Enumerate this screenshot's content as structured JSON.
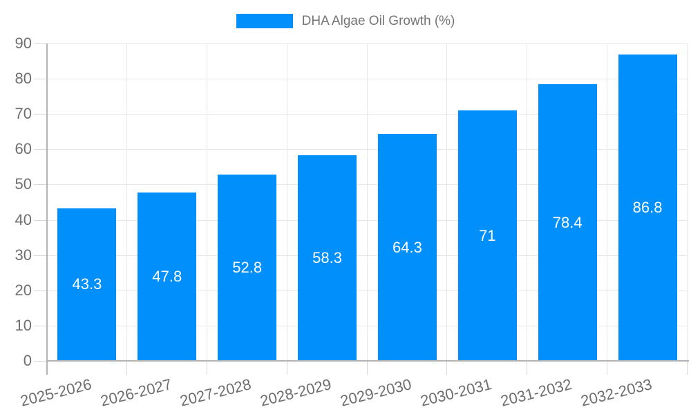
{
  "legend": {
    "label": "DHA Algae Oil Growth (%)",
    "position": "top"
  },
  "chart_data": {
    "type": "bar",
    "title": "",
    "xlabel": "",
    "ylabel": "",
    "legend": "DHA Algae Oil Growth (%)",
    "legend_position": "top",
    "categories": [
      "2025-2026",
      "2026-2027",
      "2027-2028",
      "2028-2029",
      "2029-2030",
      "2030-2031",
      "2031-2032",
      "2032-2033"
    ],
    "values": [
      43.3,
      47.8,
      52.8,
      58.3,
      64.3,
      71,
      78.4,
      86.8
    ],
    "value_labels": [
      "43.3",
      "47.8",
      "52.8",
      "58.3",
      "64.3",
      "71",
      "78.4",
      "86.8"
    ],
    "ylim": [
      0,
      90
    ],
    "ytick_step": 10,
    "ytick_labels": [
      "0",
      "10",
      "20",
      "30",
      "40",
      "50",
      "60",
      "70",
      "80",
      "90"
    ],
    "grid": true,
    "x_label_rotation_deg": -14,
    "colors": {
      "bar": "#008FFB",
      "value_label": "#ffffff",
      "axis_label": "#6e6e6e",
      "legend_text": "#757575",
      "grid_line": "#e7e7e7",
      "axis_line": "#b3b3b3",
      "tick": "#d6d6d6",
      "background": "#ffffff"
    }
  }
}
